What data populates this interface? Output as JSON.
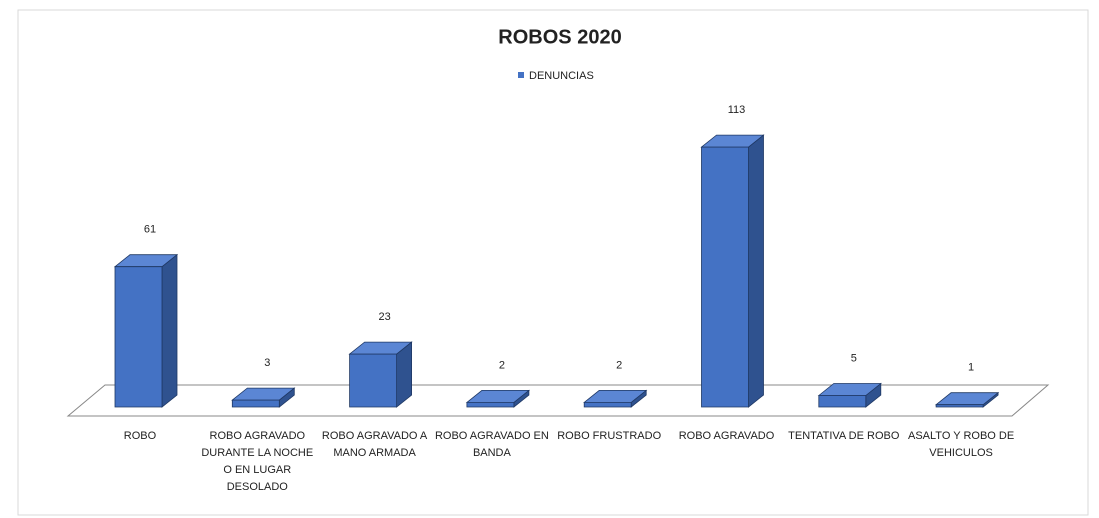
{
  "chart_data": {
    "type": "bar3d",
    "title": "ROBOS 2020",
    "categories": [
      "ROBO",
      "ROBO AGRAVADO DURANTE LA NOCHE O EN LUGAR DESOLADO",
      "ROBO AGRAVADO A MANO ARMADA",
      "ROBO AGRAVADO EN BANDA",
      "ROBO FRUSTRADO",
      "ROBO AGRAVADO",
      "TENTATIVA DE ROBO",
      "ASALTO Y ROBO DE VEHICULOS"
    ],
    "series": [
      {
        "name": "DENUNCIAS",
        "color": "#4472c4",
        "values": [
          61,
          3,
          23,
          2,
          2,
          113,
          5,
          1
        ]
      }
    ]
  }
}
